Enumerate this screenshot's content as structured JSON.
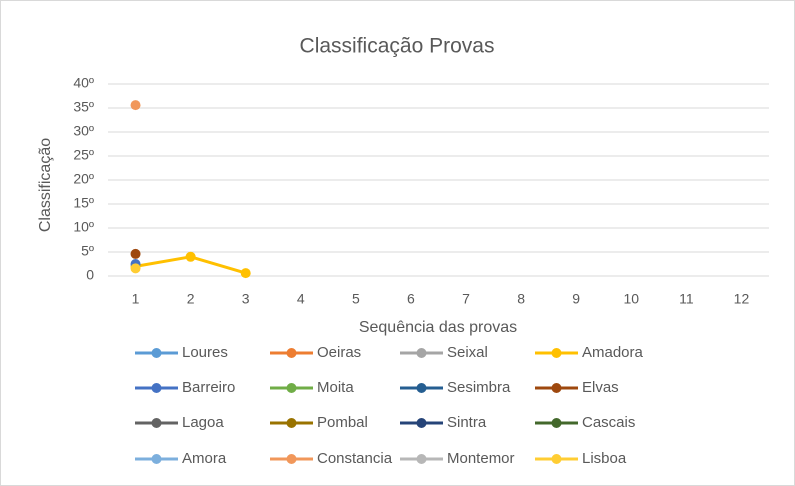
{
  "chart_data": {
    "type": "line",
    "title": "Classificação Provas",
    "x_label": "Sequência das provas",
    "y_label": "Classificação",
    "categories": [
      "1",
      "2",
      "3",
      "4",
      "5",
      "6",
      "7",
      "8",
      "9",
      "10",
      "11",
      "12"
    ],
    "ylim": [
      0,
      40
    ],
    "yticks": [
      0,
      {
        "value": 5,
        "label": "5º"
      },
      {
        "value": 10,
        "label": "10º"
      },
      {
        "value": 15,
        "label": "15º"
      },
      {
        "value": 20,
        "label": "20º"
      },
      {
        "value": 25,
        "label": "25º"
      },
      {
        "value": 30,
        "label": "30º"
      },
      {
        "value": 35,
        "label": "35º"
      },
      {
        "value": 40,
        "label": "40º"
      }
    ],
    "grid": true,
    "legend": "bottom",
    "series": [
      {
        "name": "Loures",
        "color": "#5B9BD5",
        "values": [
          null,
          null,
          null,
          null,
          null,
          null,
          null,
          null,
          null,
          null,
          null,
          null
        ]
      },
      {
        "name": "Oeiras",
        "color": "#ED7D31",
        "values": [
          null,
          null,
          null,
          null,
          null,
          null,
          null,
          null,
          null,
          null,
          null,
          null
        ]
      },
      {
        "name": "Seixal",
        "color": "#A5A5A5",
        "values": [
          null,
          null,
          null,
          null,
          null,
          null,
          null,
          null,
          null,
          null,
          null,
          null
        ]
      },
      {
        "name": "Amadora",
        "color": "#FFC000",
        "values": [
          2,
          4,
          0.6,
          null,
          null,
          null,
          null,
          null,
          null,
          null,
          null,
          null
        ]
      },
      {
        "name": "Barreiro",
        "color": "#4472C4",
        "values": [
          2.5,
          null,
          null,
          null,
          null,
          null,
          null,
          null,
          null,
          null,
          null,
          null
        ]
      },
      {
        "name": "Moita",
        "color": "#70AD47",
        "values": [
          null,
          null,
          null,
          null,
          null,
          null,
          null,
          null,
          null,
          null,
          null,
          null
        ]
      },
      {
        "name": "Sesimbra",
        "color": "#255E91",
        "values": [
          null,
          null,
          null,
          null,
          null,
          null,
          null,
          null,
          null,
          null,
          null,
          null
        ]
      },
      {
        "name": "Elvas",
        "color": "#9E480E",
        "values": [
          4.6,
          null,
          null,
          null,
          null,
          null,
          null,
          null,
          null,
          null,
          null,
          null
        ]
      },
      {
        "name": "Lagoa",
        "color": "#636363",
        "values": [
          null,
          null,
          null,
          null,
          null,
          null,
          null,
          null,
          null,
          null,
          null,
          null
        ]
      },
      {
        "name": "Pombal",
        "color": "#997300",
        "values": [
          null,
          null,
          null,
          null,
          null,
          null,
          null,
          null,
          null,
          null,
          null,
          null
        ]
      },
      {
        "name": "Sintra",
        "color": "#264478",
        "values": [
          null,
          null,
          null,
          null,
          null,
          null,
          null,
          null,
          null,
          null,
          null,
          null
        ]
      },
      {
        "name": "Cascais",
        "color": "#43682B",
        "values": [
          null,
          null,
          null,
          null,
          null,
          null,
          null,
          null,
          null,
          null,
          null,
          null
        ]
      },
      {
        "name": "Amora",
        "color": "#7CAFDD",
        "values": [
          null,
          null,
          null,
          null,
          null,
          null,
          null,
          null,
          null,
          null,
          null,
          null
        ]
      },
      {
        "name": "Constancia",
        "color": "#F1975A",
        "values": [
          35.6,
          null,
          null,
          null,
          null,
          null,
          null,
          null,
          null,
          null,
          null,
          null
        ]
      },
      {
        "name": "Montemor",
        "color": "#B7B7B7",
        "values": [
          null,
          null,
          null,
          null,
          null,
          null,
          null,
          null,
          null,
          null,
          null,
          null
        ]
      },
      {
        "name": "Lisboa",
        "color": "#FFCD33",
        "values": [
          1.6,
          null,
          null,
          null,
          null,
          null,
          null,
          null,
          null,
          null,
          null,
          null
        ]
      }
    ]
  }
}
